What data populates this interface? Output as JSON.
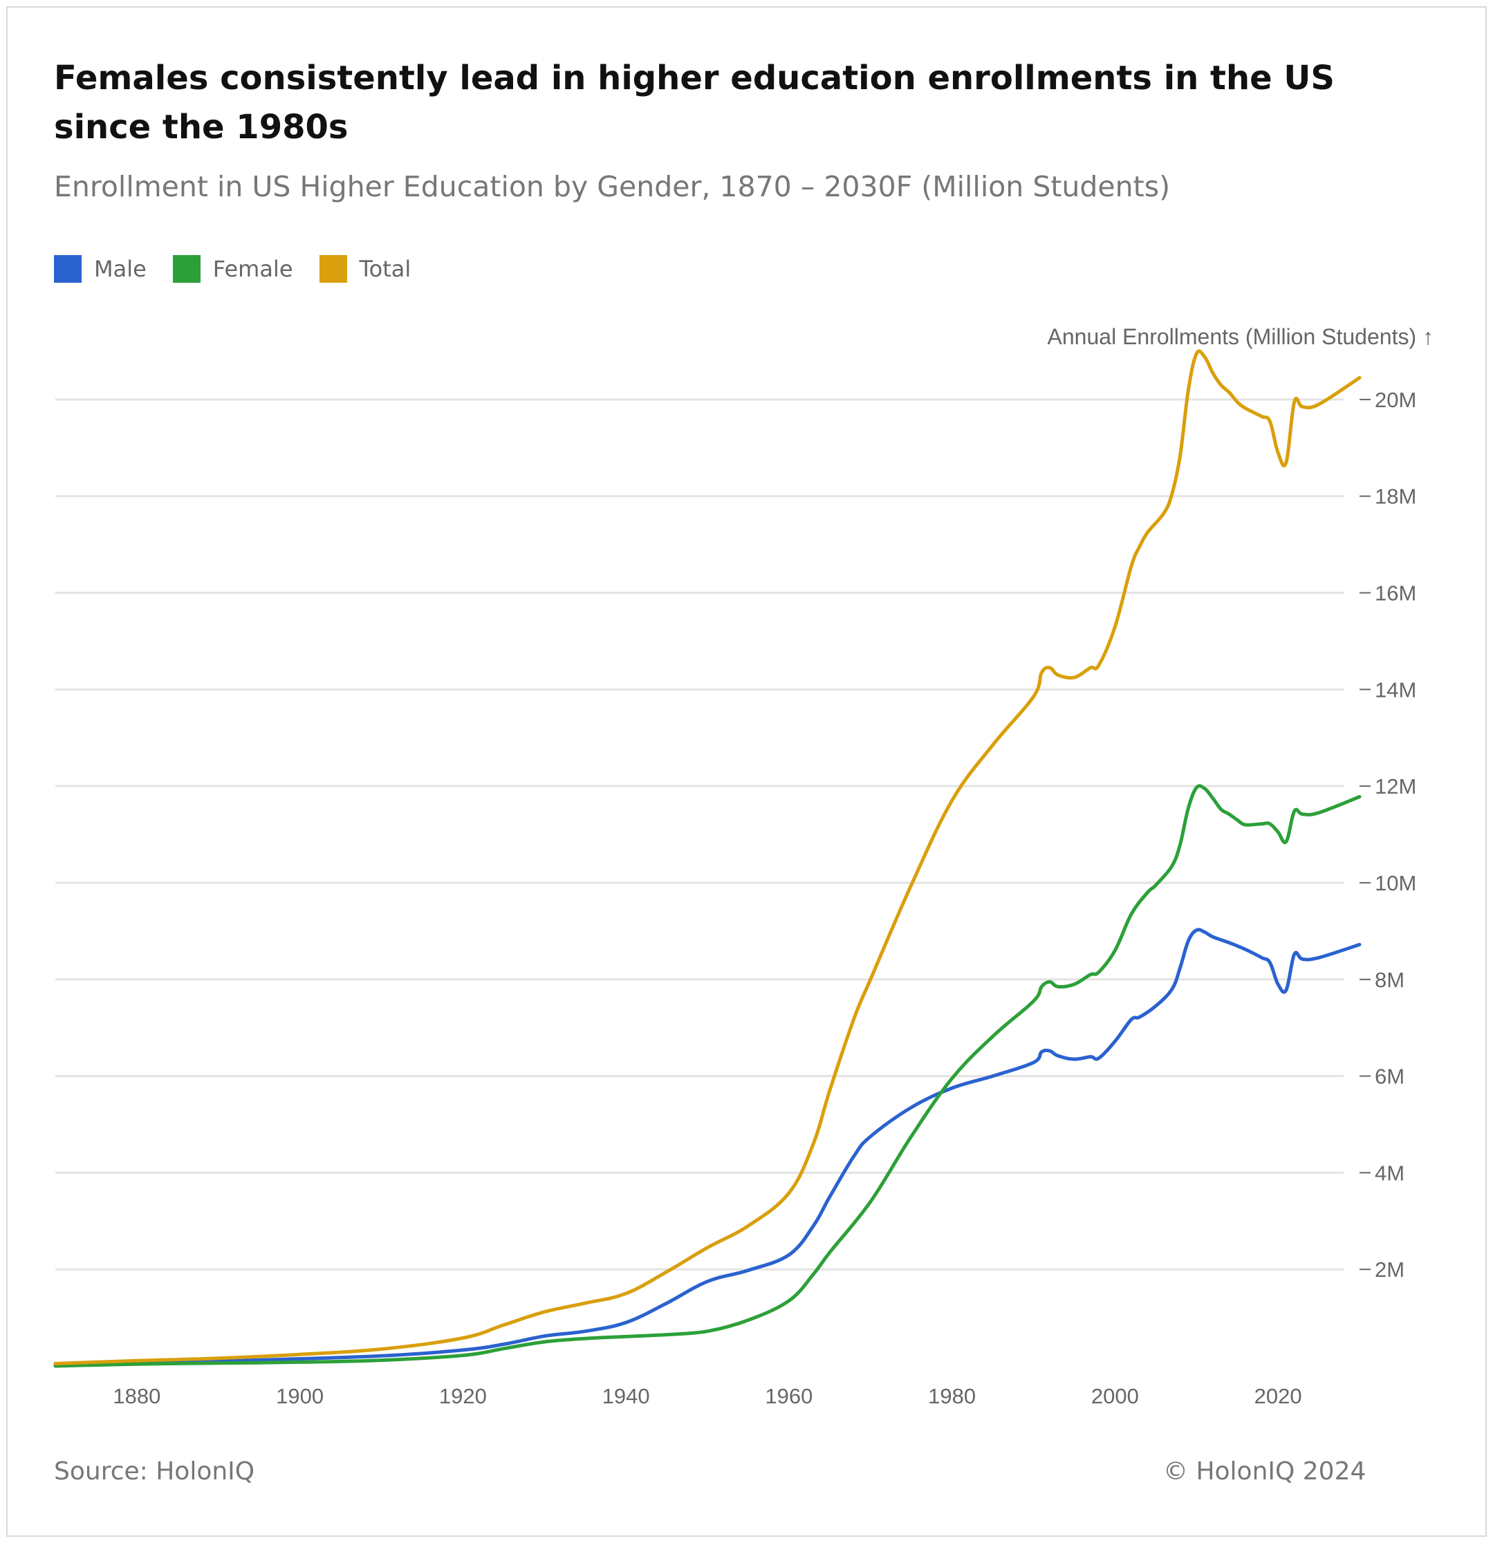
{
  "header": {
    "title": "Females consistently lead in higher education enrollments in the US since the 1980s",
    "subtitle": "Enrollment in US Higher Education by Gender, 1870 – 2030F (Million Students)"
  },
  "legend": [
    {
      "label": "Male",
      "color": "#2a62cf"
    },
    {
      "label": "Female",
      "color": "#2ca038"
    },
    {
      "label": "Total",
      "color": "#d99f0c"
    }
  ],
  "footer": {
    "source": "Source: HolonIQ",
    "copyright": "© HolonIQ 2024"
  },
  "chart_data": {
    "type": "line",
    "title": "Females consistently lead in higher education enrollments in the US since the 1980s",
    "subtitle": "Enrollment in US Higher Education by Gender, 1870 – 2030F (Million Students)",
    "xlabel": "",
    "ylabel": "Annual Enrollments (Million Students) ↑",
    "xlim": [
      1870,
      2030
    ],
    "ylim": [
      0,
      21
    ],
    "x_ticks": [
      1880,
      1900,
      1920,
      1940,
      1960,
      1980,
      2000,
      2020
    ],
    "y_ticks": [
      2,
      4,
      6,
      8,
      10,
      12,
      14,
      16,
      18,
      20
    ],
    "y_tick_labels": [
      "2M",
      "4M",
      "6M",
      "8M",
      "10M",
      "12M",
      "14M",
      "16M",
      "18M",
      "20M"
    ],
    "grid": true,
    "legend_position": "top-left",
    "series": [
      {
        "name": "Male",
        "color": "#2a62cf",
        "points": [
          [
            1870,
            0.01
          ],
          [
            1880,
            0.07
          ],
          [
            1890,
            0.1
          ],
          [
            1900,
            0.15
          ],
          [
            1910,
            0.21
          ],
          [
            1920,
            0.33
          ],
          [
            1925,
            0.45
          ],
          [
            1930,
            0.62
          ],
          [
            1935,
            0.72
          ],
          [
            1940,
            0.9
          ],
          [
            1945,
            1.3
          ],
          [
            1950,
            1.75
          ],
          [
            1955,
            1.98
          ],
          [
            1960,
            2.3
          ],
          [
            1963,
            2.9
          ],
          [
            1965,
            3.5
          ],
          [
            1968,
            4.35
          ],
          [
            1970,
            4.75
          ],
          [
            1975,
            5.35
          ],
          [
            1980,
            5.75
          ],
          [
            1985,
            6.0
          ],
          [
            1990,
            6.28
          ],
          [
            1991,
            6.5
          ],
          [
            1992,
            6.52
          ],
          [
            1993,
            6.42
          ],
          [
            1995,
            6.35
          ],
          [
            1997,
            6.4
          ],
          [
            1998,
            6.37
          ],
          [
            2000,
            6.72
          ],
          [
            2002,
            7.17
          ],
          [
            2003,
            7.22
          ],
          [
            2005,
            7.45
          ],
          [
            2007,
            7.8
          ],
          [
            2008,
            8.25
          ],
          [
            2009,
            8.8
          ],
          [
            2010,
            9.02
          ],
          [
            2011,
            8.98
          ],
          [
            2012,
            8.88
          ],
          [
            2014,
            8.76
          ],
          [
            2016,
            8.62
          ],
          [
            2018,
            8.45
          ],
          [
            2019,
            8.35
          ],
          [
            2020,
            7.9
          ],
          [
            2021,
            7.78
          ],
          [
            2022,
            8.52
          ],
          [
            2023,
            8.42
          ],
          [
            2025,
            8.45
          ],
          [
            2030,
            8.72
          ]
        ]
      },
      {
        "name": "Female",
        "color": "#2ca038",
        "points": [
          [
            1870,
            0.0
          ],
          [
            1880,
            0.04
          ],
          [
            1890,
            0.06
          ],
          [
            1900,
            0.08
          ],
          [
            1910,
            0.12
          ],
          [
            1920,
            0.22
          ],
          [
            1925,
            0.36
          ],
          [
            1930,
            0.5
          ],
          [
            1935,
            0.57
          ],
          [
            1940,
            0.61
          ],
          [
            1945,
            0.65
          ],
          [
            1950,
            0.72
          ],
          [
            1955,
            0.95
          ],
          [
            1960,
            1.35
          ],
          [
            1963,
            1.9
          ],
          [
            1965,
            2.35
          ],
          [
            1970,
            3.4
          ],
          [
            1975,
            4.75
          ],
          [
            1980,
            5.95
          ],
          [
            1985,
            6.82
          ],
          [
            1990,
            7.55
          ],
          [
            1991,
            7.85
          ],
          [
            1992,
            7.95
          ],
          [
            1993,
            7.85
          ],
          [
            1995,
            7.9
          ],
          [
            1997,
            8.1
          ],
          [
            1998,
            8.15
          ],
          [
            2000,
            8.6
          ],
          [
            2002,
            9.35
          ],
          [
            2004,
            9.8
          ],
          [
            2005,
            9.95
          ],
          [
            2007,
            10.35
          ],
          [
            2008,
            10.8
          ],
          [
            2009,
            11.55
          ],
          [
            2010,
            11.97
          ],
          [
            2011,
            11.95
          ],
          [
            2012,
            11.75
          ],
          [
            2013,
            11.52
          ],
          [
            2014,
            11.42
          ],
          [
            2015,
            11.3
          ],
          [
            2016,
            11.2
          ],
          [
            2018,
            11.22
          ],
          [
            2019,
            11.22
          ],
          [
            2020,
            11.05
          ],
          [
            2021,
            10.85
          ],
          [
            2022,
            11.48
          ],
          [
            2023,
            11.42
          ],
          [
            2025,
            11.45
          ],
          [
            2030,
            11.78
          ]
        ]
      },
      {
        "name": "Total",
        "color": "#d99f0c",
        "points": [
          [
            1870,
            0.05
          ],
          [
            1880,
            0.11
          ],
          [
            1890,
            0.16
          ],
          [
            1900,
            0.24
          ],
          [
            1910,
            0.35
          ],
          [
            1920,
            0.58
          ],
          [
            1925,
            0.85
          ],
          [
            1930,
            1.12
          ],
          [
            1935,
            1.3
          ],
          [
            1940,
            1.5
          ],
          [
            1945,
            1.95
          ],
          [
            1950,
            2.45
          ],
          [
            1955,
            2.9
          ],
          [
            1960,
            3.58
          ],
          [
            1963,
            4.6
          ],
          [
            1965,
            5.7
          ],
          [
            1968,
            7.2
          ],
          [
            1970,
            8.0
          ],
          [
            1975,
            9.95
          ],
          [
            1980,
            11.7
          ],
          [
            1985,
            12.85
          ],
          [
            1990,
            13.85
          ],
          [
            1991,
            14.35
          ],
          [
            1992,
            14.45
          ],
          [
            1993,
            14.3
          ],
          [
            1995,
            14.25
          ],
          [
            1997,
            14.45
          ],
          [
            1998,
            14.5
          ],
          [
            2000,
            15.3
          ],
          [
            2002,
            16.55
          ],
          [
            2003,
            16.95
          ],
          [
            2004,
            17.25
          ],
          [
            2006,
            17.65
          ],
          [
            2007,
            18.05
          ],
          [
            2008,
            18.85
          ],
          [
            2009,
            20.2
          ],
          [
            2010,
            20.95
          ],
          [
            2011,
            20.88
          ],
          [
            2012,
            20.55
          ],
          [
            2013,
            20.3
          ],
          [
            2014,
            20.15
          ],
          [
            2015,
            19.95
          ],
          [
            2016,
            19.82
          ],
          [
            2018,
            19.65
          ],
          [
            2019,
            19.55
          ],
          [
            2020,
            18.9
          ],
          [
            2021,
            18.7
          ],
          [
            2022,
            19.95
          ],
          [
            2023,
            19.85
          ],
          [
            2025,
            19.9
          ],
          [
            2030,
            20.45
          ]
        ]
      }
    ]
  }
}
